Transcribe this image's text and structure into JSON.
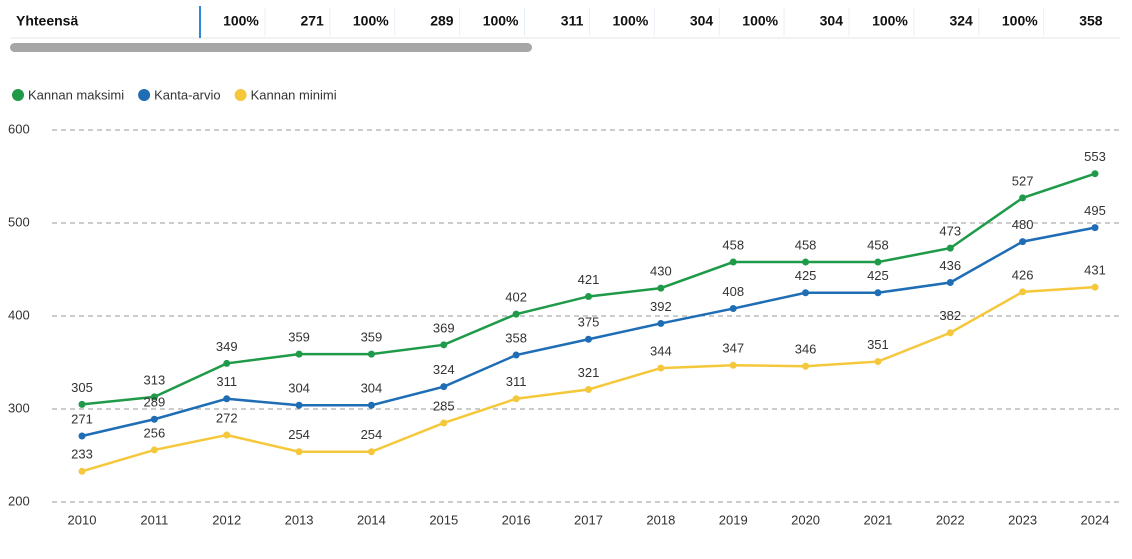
{
  "table": {
    "rows": [
      [
        "Yhteensä",
        "100%",
        "271",
        "100%",
        "289",
        "100%",
        "311",
        "100%",
        "304",
        "100%",
        "304",
        "100%",
        "324",
        "100%",
        "358"
      ]
    ]
  },
  "chart_data": {
    "type": "line",
    "categories": [
      "2010",
      "2011",
      "2012",
      "2013",
      "2014",
      "2015",
      "2016",
      "2017",
      "2018",
      "2019",
      "2020",
      "2021",
      "2022",
      "2023",
      "2024"
    ],
    "series": [
      {
        "name": "Kannan maksimi",
        "color": "#1e9a48",
        "values": [
          305,
          313,
          349,
          359,
          359,
          369,
          402,
          421,
          430,
          458,
          458,
          458,
          473,
          527,
          553
        ]
      },
      {
        "name": "Kanta-arvio",
        "color": "#1f6db5",
        "values": [
          271,
          289,
          311,
          304,
          304,
          324,
          358,
          375,
          392,
          408,
          425,
          425,
          436,
          480,
          495
        ]
      },
      {
        "name": "Kannan minimi",
        "color": "#f5c83c",
        "values": [
          233,
          256,
          272,
          254,
          254,
          285,
          311,
          321,
          344,
          347,
          346,
          351,
          382,
          426,
          431
        ]
      }
    ],
    "ylim": [
      200,
      600
    ],
    "yticks": [
      200,
      300,
      400,
      500,
      600
    ],
    "grid": true,
    "data_labels": true,
    "legend": "top-left"
  }
}
